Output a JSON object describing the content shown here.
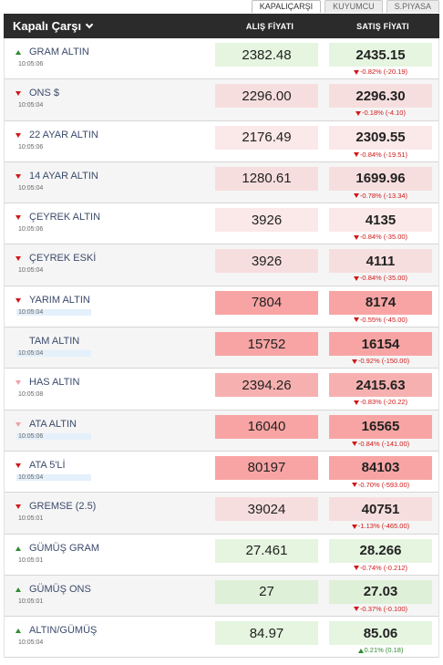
{
  "tabs": [
    {
      "label": "KAPALIÇARŞI",
      "active": true
    },
    {
      "label": "KUYUMCU",
      "active": false
    },
    {
      "label": "S.PIYASA",
      "active": false
    }
  ],
  "header": {
    "title": "Kapalı Çarşı",
    "bid_label": "ALIŞ FİYATI",
    "ask_label": "SATIŞ FİYATI"
  },
  "rows": [
    {
      "name": "GRAM ALTIN",
      "time": "10:05:06",
      "trend": "up",
      "bid": "2382.48",
      "ask": "2435.15",
      "change": "-0.82% (-20.19)",
      "change_dir": "down",
      "bid_bg": "green",
      "ask_bg": "green",
      "time_flash": false
    },
    {
      "name": "ONS $",
      "time": "10:05:04",
      "trend": "down",
      "bid": "2296.00",
      "ask": "2296.30",
      "change": "-0.18% (-4.10)",
      "change_dir": "down",
      "bid_bg": "pink1",
      "ask_bg": "pink1",
      "time_flash": false
    },
    {
      "name": "22 AYAR ALTIN",
      "time": "10:05:06",
      "trend": "down",
      "bid": "2176.49",
      "ask": "2309.55",
      "change": "-0.84% (-19.51)",
      "change_dir": "down",
      "bid_bg": "pink2",
      "ask_bg": "pink2",
      "time_flash": false
    },
    {
      "name": "14 AYAR ALTIN",
      "time": "10:05:04",
      "trend": "down",
      "bid": "1280.61",
      "ask": "1699.96",
      "change": "-0.78% (-13.34)",
      "change_dir": "down",
      "bid_bg": "pink1",
      "ask_bg": "pink1",
      "time_flash": false
    },
    {
      "name": "ÇEYREK ALTIN",
      "time": "10:05:06",
      "trend": "down",
      "bid": "3926",
      "ask": "4135",
      "change": "-0.84% (-35.00)",
      "change_dir": "down",
      "bid_bg": "pink2",
      "ask_bg": "pink2",
      "time_flash": false
    },
    {
      "name": "ÇEYREK ESKİ",
      "time": "10:05:04",
      "trend": "down",
      "bid": "3926",
      "ask": "4111",
      "change": "-0.84% (-35.00)",
      "change_dir": "down",
      "bid_bg": "pink1",
      "ask_bg": "pink1",
      "time_flash": false
    },
    {
      "name": "YARIM ALTIN",
      "time": "10:05:04",
      "trend": "down",
      "bid": "7804",
      "ask": "8174",
      "change": "-0.55% (-45.00)",
      "change_dir": "down",
      "bid_bg": "pink3",
      "ask_bg": "pink3",
      "time_flash": true
    },
    {
      "name": "TAM ALTIN",
      "time": "10:05:04",
      "trend": "none",
      "bid": "15752",
      "ask": "16154",
      "change": "-0.92% (-150.00)",
      "change_dir": "down",
      "bid_bg": "pink3",
      "ask_bg": "pink3",
      "time_flash": true
    },
    {
      "name": "HAS ALTIN",
      "time": "10:05:08",
      "trend": "down-light",
      "bid": "2394.26",
      "ask": "2415.63",
      "change": "-0.83% (-20.22)",
      "change_dir": "down",
      "bid_bg": "pink4",
      "ask_bg": "pink4",
      "time_flash": false
    },
    {
      "name": "ATA ALTIN",
      "time": "10:05:06",
      "trend": "down-light",
      "bid": "16040",
      "ask": "16565",
      "change": "-0.84% (-141.00)",
      "change_dir": "down",
      "bid_bg": "pink3",
      "ask_bg": "pink3",
      "time_flash": true
    },
    {
      "name": "ATA 5'Lİ",
      "time": "10:05:04",
      "trend": "down",
      "bid": "80197",
      "ask": "84103",
      "change": "-0.70% (-593.00)",
      "change_dir": "down",
      "bid_bg": "pink3",
      "ask_bg": "pink3",
      "time_flash": true
    },
    {
      "name": "GREMSE (2.5)",
      "time": "10:05:01",
      "trend": "down",
      "bid": "39024",
      "ask": "40751",
      "change": "-1.13% (-465.00)",
      "change_dir": "down",
      "bid_bg": "pink1",
      "ask_bg": "pink1",
      "time_flash": false
    },
    {
      "name": "GÜMÜŞ GRAM",
      "time": "10:05:01",
      "trend": "up",
      "bid": "27.461",
      "ask": "28.266",
      "change": "-0.74% (-0.212)",
      "change_dir": "down",
      "bid_bg": "green",
      "ask_bg": "green",
      "time_flash": false
    },
    {
      "name": "GÜMÜŞ ONS",
      "time": "10:05:01",
      "trend": "up",
      "bid": "27",
      "ask": "27.03",
      "change": "-0.37% (-0.100)",
      "change_dir": "down",
      "bid_bg": "green2",
      "ask_bg": "green2",
      "time_flash": false
    },
    {
      "name": "ALTIN/GÜMÜŞ",
      "time": "10:05:04",
      "trend": "up",
      "bid": "84.97",
      "ask": "85.06",
      "change": "0.21% (0.18)",
      "change_dir": "up",
      "bid_bg": "green",
      "ask_bg": "green",
      "time_flash": false
    }
  ],
  "colors": {
    "header_bg": "#2b2b2b",
    "up": "#2e8b2e",
    "down": "#d01818",
    "name_text": "#3b4a6b"
  }
}
